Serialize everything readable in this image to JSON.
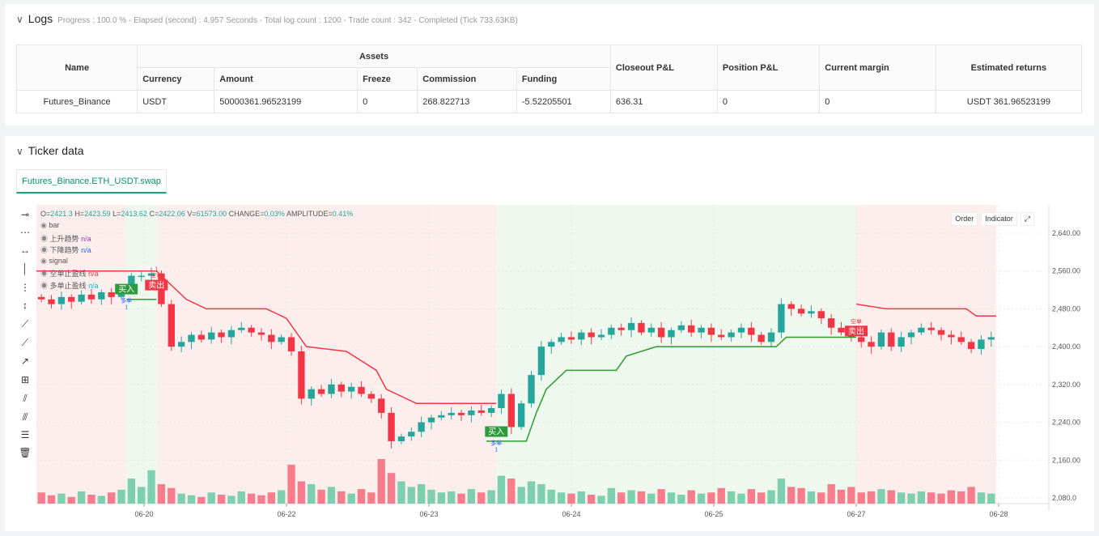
{
  "logs": {
    "title": "Logs",
    "summary": "Progress : 100.0 % - Elapsed (second) : 4.957  Seconds - Total log count : 1200 - Trade count : 342 - Completed (Tick 733.63KB)",
    "headers": {
      "name": "Name",
      "assets": "Assets",
      "currency": "Currency",
      "amount": "Amount",
      "freeze": "Freeze",
      "commission": "Commission",
      "funding": "Funding",
      "closeout": "Closeout P&L",
      "position": "Position P&L",
      "margin": "Current margin",
      "returns": "Estimated returns"
    },
    "row": {
      "name": "Futures_Binance",
      "currency": "USDT",
      "amount": "50000361.96523199",
      "freeze": "0",
      "commission": "268.822713",
      "funding": "-5.52205501",
      "closeout": "636.31",
      "position": "0",
      "margin": "0",
      "returns": "USDT 361.96523199"
    }
  },
  "ticker": {
    "title": "Ticker data",
    "tab": "Futures_Binance.ETH_USDT.swap",
    "ohlc": {
      "o_label": "O=",
      "o": "2421.3",
      "h_label": "H=",
      "h": "2423.59",
      "l_label": "L=",
      "l": "2413.62",
      "c_label": "C=",
      "c": "2422.06",
      "v_label": "V=",
      "v": "61573.00",
      "change_label": "CHANGE=",
      "change": "0.03%",
      "amp_label": "AMPLITUDE=",
      "amp": "0.41%"
    },
    "legend": [
      {
        "label": "bar",
        "value": ""
      },
      {
        "label": "上升趋势",
        "value": "n/a",
        "color": "#8e44ad"
      },
      {
        "label": "下降趋势",
        "value": "n/a",
        "color": "#2962ff"
      },
      {
        "label": "signal",
        "value": ""
      },
      {
        "label": "空单止盈线",
        "value": "n/a",
        "color": "#f23645"
      },
      {
        "label": "多单止盈线",
        "value": "n/a",
        "color": "#00bcd4"
      }
    ],
    "buttons": {
      "order": "Order",
      "indicator": "Indicator"
    }
  },
  "colors": {
    "up": "#26a69a",
    "down": "#f23645",
    "upVol": "#7dcfb0",
    "downVol": "#f77c8c",
    "stopShort": "#f23645",
    "stopLong": "#2a9d2a",
    "bgShort": "#fdeeee",
    "bgLong": "#eef8ee"
  },
  "chart_data": {
    "type": "candlestick",
    "ylim": [
      2060,
      2670
    ],
    "yticks": [
      2080,
      2160,
      2240,
      2320,
      2400,
      2480,
      2560,
      2640
    ],
    "ytick_labels": [
      "2,080.0",
      "2,160.00",
      "2,240.00",
      "2,320.00",
      "2,400.00",
      "2,480.00",
      "2,560.00",
      "2,640.00"
    ],
    "xticks": [
      "06-20",
      "06-22",
      "06-23",
      "06-24",
      "06-25",
      "06-27",
      "06-28"
    ],
    "closes": [
      2500,
      2490,
      2505,
      2495,
      2510,
      2500,
      2515,
      2505,
      2520,
      2550,
      2550,
      2555,
      2490,
      2400,
      2410,
      2425,
      2415,
      2430,
      2420,
      2435,
      2440,
      2430,
      2425,
      2410,
      2420,
      2390,
      2290,
      2310,
      2300,
      2320,
      2305,
      2315,
      2300,
      2290,
      2260,
      2200,
      2210,
      2220,
      2240,
      2250,
      2255,
      2260,
      2255,
      2265,
      2260,
      2270,
      2300,
      2230,
      2280,
      2340,
      2400,
      2410,
      2420,
      2415,
      2430,
      2420,
      2425,
      2440,
      2435,
      2450,
      2430,
      2440,
      2420,
      2435,
      2445,
      2430,
      2440,
      2425,
      2420,
      2430,
      2440,
      2425,
      2410,
      2430,
      2490,
      2480,
      2470,
      2475,
      2460,
      2440,
      2430,
      2420,
      2410,
      2400,
      2430,
      2400,
      2420,
      2430,
      2440,
      2435,
      2425,
      2420,
      2410,
      2395,
      2415,
      2420
    ],
    "volumes": [
      20,
      15,
      18,
      12,
      22,
      16,
      14,
      20,
      25,
      45,
      30,
      60,
      35,
      28,
      18,
      15,
      12,
      20,
      16,
      14,
      22,
      18,
      15,
      20,
      24,
      70,
      40,
      35,
      25,
      30,
      22,
      18,
      26,
      20,
      80,
      55,
      40,
      30,
      35,
      25,
      20,
      22,
      18,
      26,
      20,
      24,
      50,
      45,
      30,
      40,
      35,
      25,
      20,
      18,
      22,
      16,
      14,
      28,
      20,
      24,
      22,
      18,
      26,
      20,
      16,
      24,
      18,
      20,
      28,
      22,
      18,
      26,
      20,
      24,
      45,
      30,
      28,
      22,
      20,
      35,
      25,
      30,
      20,
      22,
      26,
      24,
      20,
      18,
      22,
      20,
      18,
      24,
      22,
      30,
      20,
      18
    ],
    "stop_short": [
      [
        0,
        2560
      ],
      [
        12,
        2560
      ],
      [
        15,
        2500
      ],
      [
        17,
        2480
      ],
      [
        23,
        2480
      ],
      [
        25,
        2460
      ],
      [
        27,
        2400
      ],
      [
        31,
        2390
      ],
      [
        34,
        2350
      ],
      [
        35,
        2310
      ],
      [
        37,
        2290
      ],
      [
        38,
        2280
      ],
      [
        46,
        2280
      ],
      null,
      [
        82,
        2490
      ],
      [
        85,
        2480
      ],
      [
        93,
        2480
      ],
      [
        94,
        2465
      ],
      [
        96,
        2465
      ]
    ],
    "stop_long": [
      [
        9,
        2500
      ],
      [
        12,
        2500
      ],
      null,
      [
        45,
        2200
      ],
      [
        49,
        2200
      ],
      [
        50,
        2260
      ],
      [
        51,
        2310
      ],
      [
        53,
        2350
      ],
      [
        58,
        2350
      ],
      [
        59,
        2380
      ],
      [
        62,
        2400
      ],
      [
        74,
        2400
      ],
      [
        75,
        2420
      ],
      [
        82,
        2420
      ]
    ],
    "regions": [
      {
        "from": 0,
        "to": 9,
        "side": "short"
      },
      {
        "from": 9,
        "to": 12,
        "side": "long"
      },
      {
        "from": 12,
        "to": 46,
        "side": "short"
      },
      {
        "from": 46,
        "to": 82,
        "side": "long"
      },
      {
        "from": 82,
        "to": 96,
        "side": "short"
      }
    ],
    "markers": [
      {
        "i": 9,
        "label": "买入",
        "sub": "多单",
        "n": "1",
        "side": "long"
      },
      {
        "i": 12,
        "label": "卖出",
        "sub": "空单",
        "n": "1",
        "side": "short"
      },
      {
        "i": 46,
        "label": "买入",
        "sub": "多单",
        "n": "1",
        "side": "long"
      },
      {
        "i": 82,
        "label": "卖出",
        "sub": "空单",
        "n": "",
        "side": "short"
      }
    ]
  }
}
